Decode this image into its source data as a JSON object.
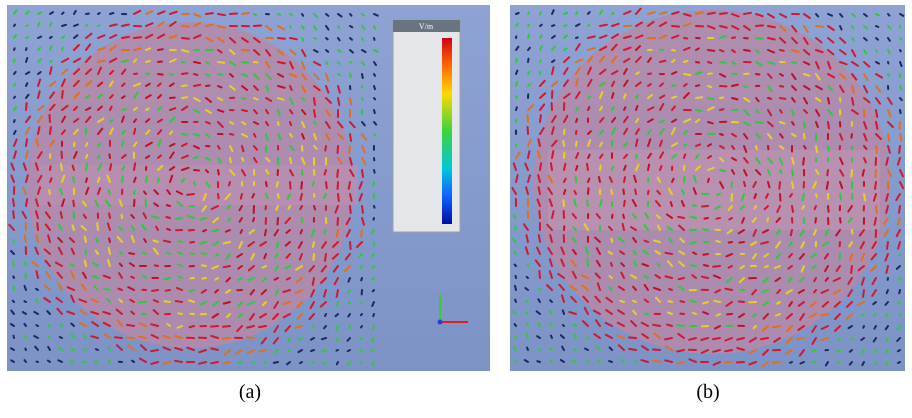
{
  "figure": {
    "panels": [
      {
        "caption": "(a)",
        "legend_title": "V/m"
      },
      {
        "caption": "(b)"
      }
    ]
  }
}
